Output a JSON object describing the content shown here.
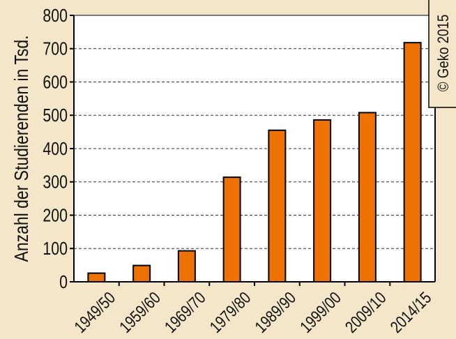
{
  "colors": {
    "background": "#f4e6c9",
    "plot_background": "#ffffff",
    "bar_fill": "#ed7203",
    "bar_stroke": "#000000",
    "axis": "#000000",
    "grid": "#333333"
  },
  "copyright_text": "© Geko 2015",
  "chart_data": {
    "type": "bar",
    "title": "",
    "xlabel": "",
    "ylabel": "Anzahl der Studierenden in Tsd.",
    "categories": [
      "1949/50",
      "1959/60",
      "1969/70",
      "1979/80",
      "1989/90",
      "1999/00",
      "2009/10",
      "2014/15"
    ],
    "values": [
      26,
      49,
      93,
      314,
      455,
      486,
      508,
      718
    ],
    "ylim": [
      0,
      800
    ],
    "yticks": [
      0,
      100,
      200,
      300,
      400,
      500,
      600,
      700,
      800
    ],
    "ytick_labels": [
      "0",
      "100",
      "200",
      "300",
      "400",
      "500",
      "600",
      "700",
      "800"
    ],
    "grid": "dashed horizontal",
    "legend": "none"
  }
}
